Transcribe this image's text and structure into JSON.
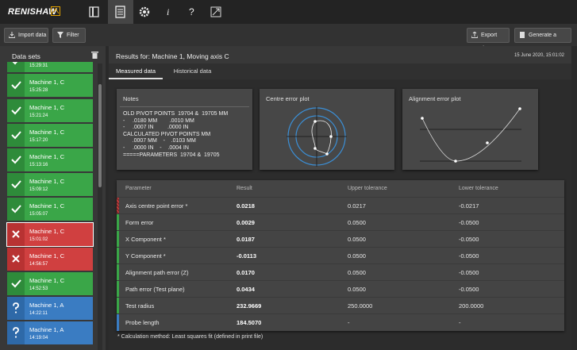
{
  "logo": "RENISHAW",
  "toolbar": [
    "i",
    "?"
  ],
  "actions": {
    "import": "Import data",
    "filter": "Filter",
    "export": "Export data",
    "report": "Generate a report."
  },
  "datasets": {
    "title": "Data sets",
    "items": [
      {
        "time": "15:29:31",
        "status": "pass"
      },
      {
        "name": "Machine 1, C",
        "time": "15:25:28",
        "status": "pass"
      },
      {
        "name": "Machine 1, C",
        "time": "15:21:24",
        "status": "pass"
      },
      {
        "name": "Machine 1, C",
        "time": "15:17:20",
        "status": "pass"
      },
      {
        "name": "Machine 1, C",
        "time": "15:13:16",
        "status": "pass"
      },
      {
        "name": "Machine 1, C",
        "time": "15:09:12",
        "status": "pass"
      },
      {
        "name": "Machine 1, C",
        "time": "15:05:07",
        "status": "pass"
      },
      {
        "name": "Machine 1, C",
        "time": "15:01:02",
        "status": "fail",
        "selected": true
      },
      {
        "name": "Machine 1, C",
        "time": "14:56:57",
        "status": "fail"
      },
      {
        "name": "Machine 1, C",
        "time": "14:52:53",
        "status": "pass"
      },
      {
        "name": "Machine 1, A",
        "time": "14:22:11",
        "status": "unknown"
      },
      {
        "name": "Machine 1, A",
        "time": "14:19:04",
        "status": "unknown"
      }
    ]
  },
  "results": {
    "title": "Results for: Machine 1, Moving axis C",
    "date": "15 June 2020, 15:01:02",
    "tabs": [
      "Measured data",
      "Historical data"
    ],
    "notes": {
      "title": "Notes",
      "lines": [
        "OLD PIVOT POINTS  19704 &  19705 MM",
        "-     .0180 MM        .0010 MM",
        "-     .0007 IN         .0000 IN",
        "CALCULATED PIVOT POINTS MM",
        "      .0007 MM    -    .0103 MM",
        "-     .0000 IN    -    .0004 IN",
        "=====PARAMETERS  19704 &  19705"
      ]
    },
    "plots": [
      "Centre error plot",
      "Alignment error plot"
    ],
    "table": {
      "headers": [
        "Parameter",
        "Result",
        "Upper tolerance",
        "Lower tolerance"
      ],
      "rows": [
        {
          "status": "fail",
          "cells": [
            "Axis centre point error *",
            "0.0218",
            "0.0217",
            "-0.0217"
          ]
        },
        {
          "status": "pass",
          "cells": [
            "Form error",
            "0.0029",
            "0.0500",
            "-0.0500"
          ]
        },
        {
          "status": "pass",
          "cells": [
            "X Component *",
            "0.0187",
            "0.0500",
            "-0.0500"
          ]
        },
        {
          "status": "pass",
          "cells": [
            "Y Component *",
            "-0.0113",
            "0.0500",
            "-0.0500"
          ]
        },
        {
          "status": "pass",
          "cells": [
            "Alignment path error (Z)",
            "0.0170",
            "0.0500",
            "-0.0500"
          ]
        },
        {
          "status": "pass",
          "cells": [
            "Path error (Test plane)",
            "0.0434",
            "0.0500",
            "-0.0500"
          ]
        },
        {
          "status": "pass",
          "cells": [
            "Test radius",
            "232.9669",
            "250.0000",
            "200.0000"
          ]
        },
        {
          "status": "info",
          "cells": [
            "Probe length",
            "184.5070",
            "-",
            "-"
          ]
        }
      ]
    },
    "footnote": "* Calculation method: Least squares fit (defined in print file)"
  }
}
